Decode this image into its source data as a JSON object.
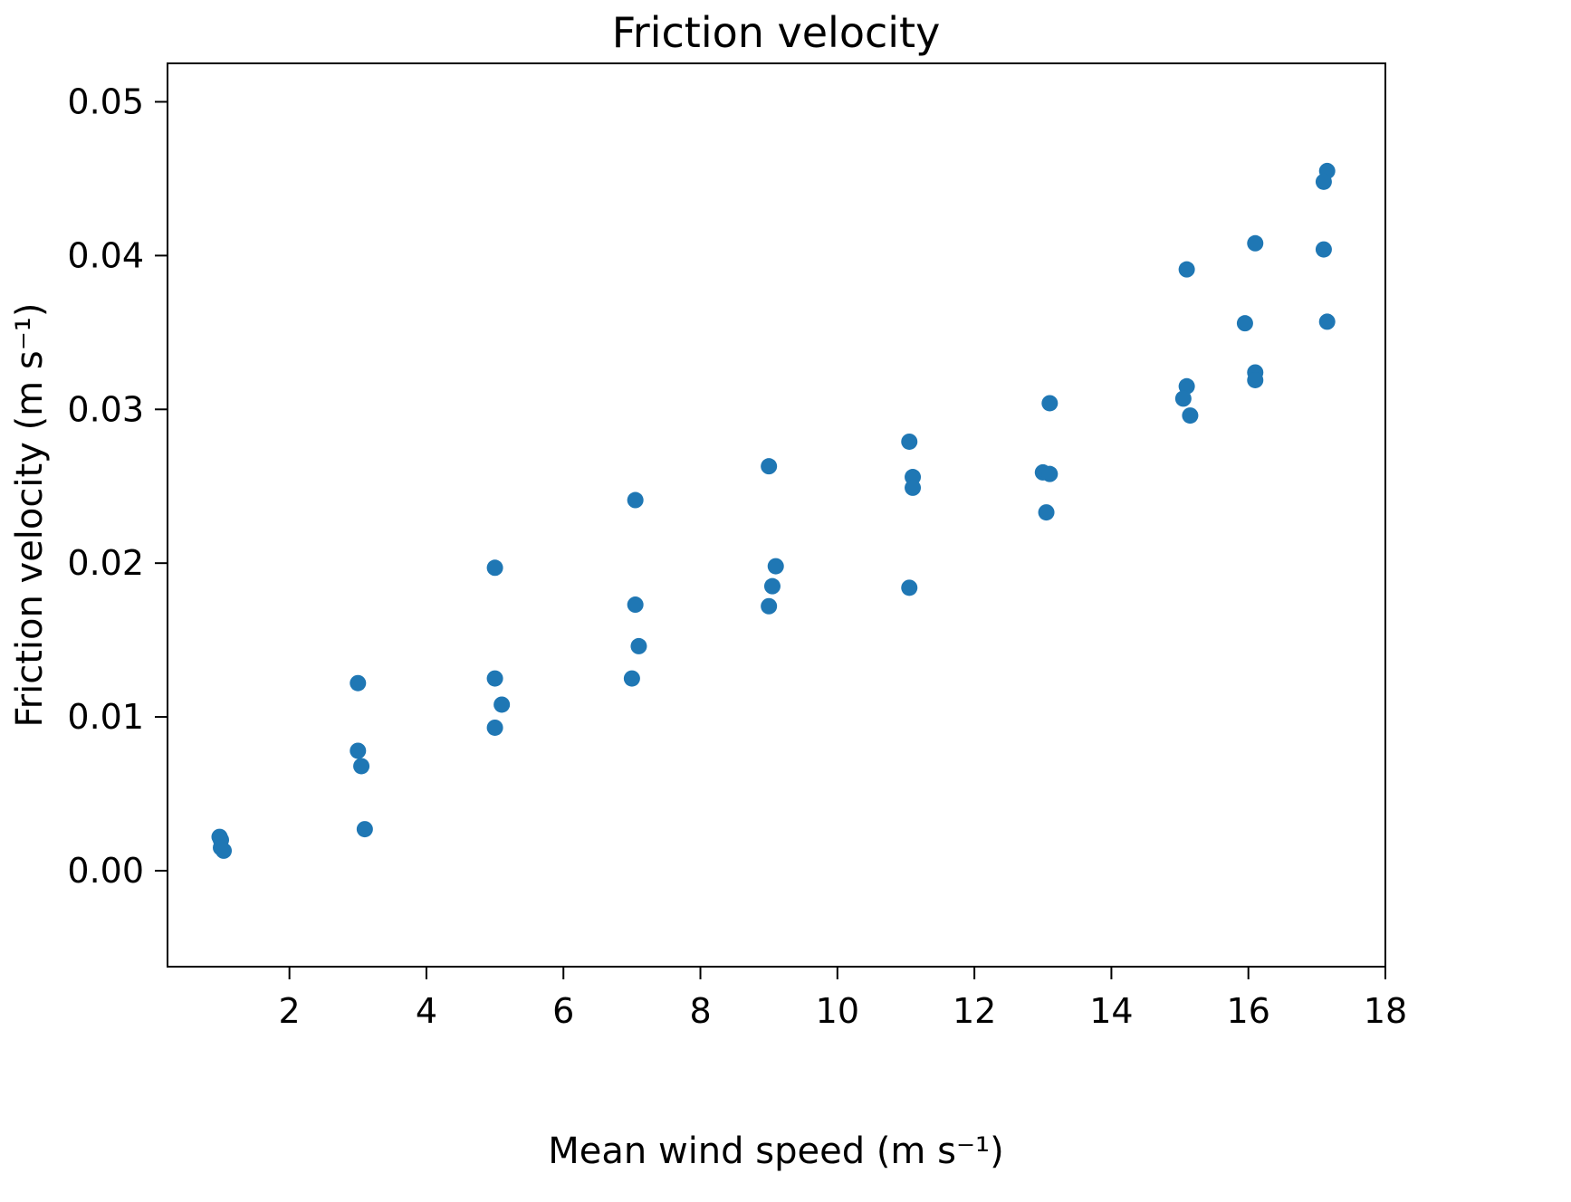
{
  "chart_data": {
    "type": "scatter",
    "title": "Friction velocity",
    "xlabel": "Mean wind speed (m s⁻¹)",
    "ylabel": "Friction velocity (m s⁻¹)",
    "xlim": [
      0.22,
      18.0
    ],
    "ylim": [
      -0.00624,
      0.0525
    ],
    "xticks": [
      2,
      4,
      6,
      8,
      10,
      12,
      14,
      16,
      18
    ],
    "xtick_labels": [
      "2",
      "4",
      "6",
      "8",
      "10",
      "12",
      "14",
      "16",
      "18"
    ],
    "yticks": [
      0.0,
      0.01,
      0.02,
      0.03,
      0.04,
      0.05
    ],
    "ytick_labels": [
      "0.00",
      "0.01",
      "0.02",
      "0.03",
      "0.04",
      "0.05"
    ],
    "grid": false,
    "legend": "none",
    "marker_color": "#1f77b4",
    "points": [
      [
        0.98,
        0.0022
      ],
      [
        1.0,
        0.002
      ],
      [
        1.0,
        0.0015
      ],
      [
        1.04,
        0.0013
      ],
      [
        3.0,
        0.0122
      ],
      [
        3.0,
        0.0078
      ],
      [
        3.05,
        0.0068
      ],
      [
        3.1,
        0.0027
      ],
      [
        5.0,
        0.0197
      ],
      [
        5.0,
        0.0125
      ],
      [
        5.1,
        0.0108
      ],
      [
        5.0,
        0.0093
      ],
      [
        7.05,
        0.0241
      ],
      [
        7.05,
        0.0173
      ],
      [
        7.1,
        0.0146
      ],
      [
        7.0,
        0.0125
      ],
      [
        9.0,
        0.0263
      ],
      [
        9.1,
        0.0198
      ],
      [
        9.05,
        0.0185
      ],
      [
        9.0,
        0.0172
      ],
      [
        11.05,
        0.0279
      ],
      [
        11.1,
        0.0256
      ],
      [
        11.1,
        0.0249
      ],
      [
        11.05,
        0.0184
      ],
      [
        13.1,
        0.0304
      ],
      [
        13.0,
        0.0259
      ],
      [
        13.1,
        0.0258
      ],
      [
        13.05,
        0.0233
      ],
      [
        15.1,
        0.0391
      ],
      [
        15.1,
        0.0315
      ],
      [
        15.05,
        0.0307
      ],
      [
        15.15,
        0.0296
      ],
      [
        16.1,
        0.0408
      ],
      [
        15.95,
        0.0356
      ],
      [
        16.1,
        0.0324
      ],
      [
        16.1,
        0.0319
      ],
      [
        17.15,
        0.0455
      ],
      [
        17.1,
        0.0448
      ],
      [
        17.1,
        0.0404
      ],
      [
        17.15,
        0.0357
      ]
    ]
  }
}
